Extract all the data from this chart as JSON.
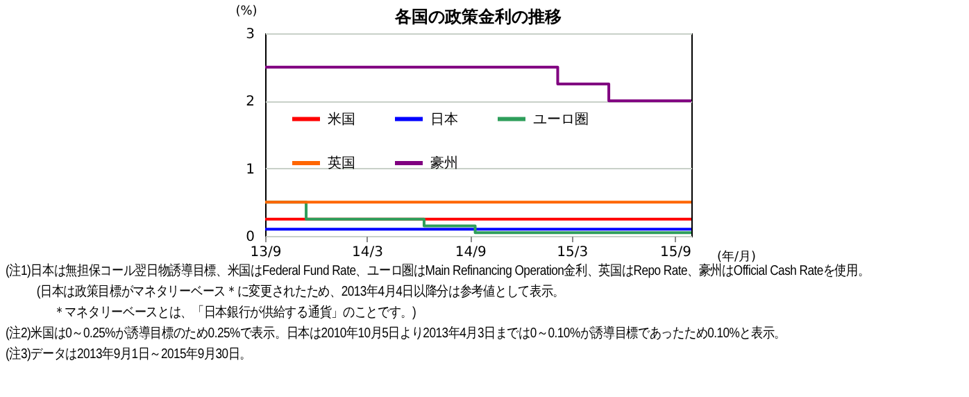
{
  "chart_data": {
    "type": "step",
    "title": "各国の政策金利の推移",
    "ylabel": "(%)",
    "xlabel": "(年/月)",
    "xlim": [
      "2013-09-01",
      "2015-09-30"
    ],
    "xticks": [
      {
        "value": "2013-09-01",
        "label": "13/9"
      },
      {
        "value": "2014-03-01",
        "label": "14/3"
      },
      {
        "value": "2014-09-01",
        "label": "14/9"
      },
      {
        "value": "2015-03-01",
        "label": "15/3"
      },
      {
        "value": "2015-09-01",
        "label": "15/9"
      }
    ],
    "ylim": [
      0,
      3
    ],
    "yticks": [
      0,
      1,
      2,
      3
    ],
    "grid": "y",
    "legend": "left",
    "series": [
      {
        "name": "米国",
        "color": "#ff0000",
        "x": [
          "2013-09-01",
          "2015-09-30"
        ],
        "values": [
          0.25,
          0.25
        ]
      },
      {
        "name": "日本",
        "color": "#0000ff",
        "x": [
          "2013-09-01",
          "2015-09-30"
        ],
        "values": [
          0.1,
          0.1
        ]
      },
      {
        "name": "ユーロ圏",
        "color": "#2e9e5b",
        "x": [
          "2013-09-01",
          "2013-11-13",
          "2014-06-11",
          "2014-09-10",
          "2015-09-30"
        ],
        "values": [
          0.5,
          0.25,
          0.15,
          0.05,
          0.05
        ]
      },
      {
        "name": "英国",
        "color": "#ff6600",
        "x": [
          "2013-09-01",
          "2015-09-30"
        ],
        "values": [
          0.5,
          0.5
        ]
      },
      {
        "name": "豪州",
        "color": "#800080",
        "x": [
          "2013-09-01",
          "2015-02-04",
          "2015-05-06",
          "2015-09-30"
        ],
        "values": [
          2.5,
          2.25,
          2.0,
          2.0
        ]
      }
    ],
    "annotations": [
      "(注1)日本は無担保コール翌日物誘導目標、米国はFederal Fund Rate、ユーロ圏はMain Refinancing Operation金利、英国はRepo Rate、豪州はOfficial Cash Rateを使用。",
      "(日本は政策目標がマネタリーベース＊に変更されたため、2013年4月4日以降分は参考値として表示。",
      "＊マネタリーベースとは、「日本銀行が供給する通貨」のことです。)",
      "(注2)米国は0～0.25%が誘導目標のため0.25%で表示。日本は2010年10月5日より2013年4月3日までは0～0.10%が誘導目標であったため0.10%と表示。",
      "(注3)データは2013年9月1日～2015年9月30日。"
    ]
  }
}
